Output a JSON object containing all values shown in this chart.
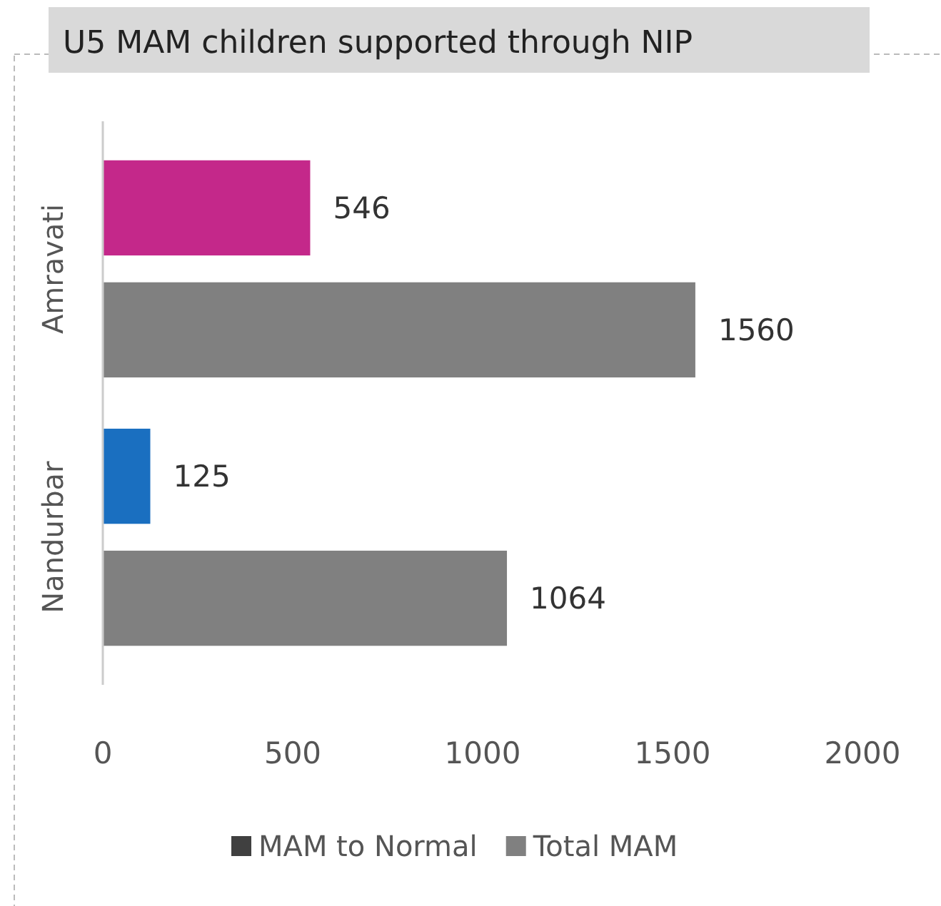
{
  "chart_data": {
    "type": "bar",
    "orientation": "horizontal",
    "title": "U5 MAM children supported through NIP",
    "categories": [
      "Amravati",
      "Nandurbar"
    ],
    "series": [
      {
        "name": "MAM to Normal",
        "color": "#404040",
        "colors": [
          "#c4288a",
          "#1a6fc0"
        ],
        "values": [
          546,
          125
        ]
      },
      {
        "name": "Total MAM",
        "color": "#808080",
        "values": [
          1560,
          1064
        ]
      }
    ],
    "xlim": [
      0,
      2000
    ],
    "xticks": [
      0,
      500,
      1000,
      1500,
      2000
    ],
    "data_labels": true,
    "legend": "bottom",
    "grid": false
  }
}
